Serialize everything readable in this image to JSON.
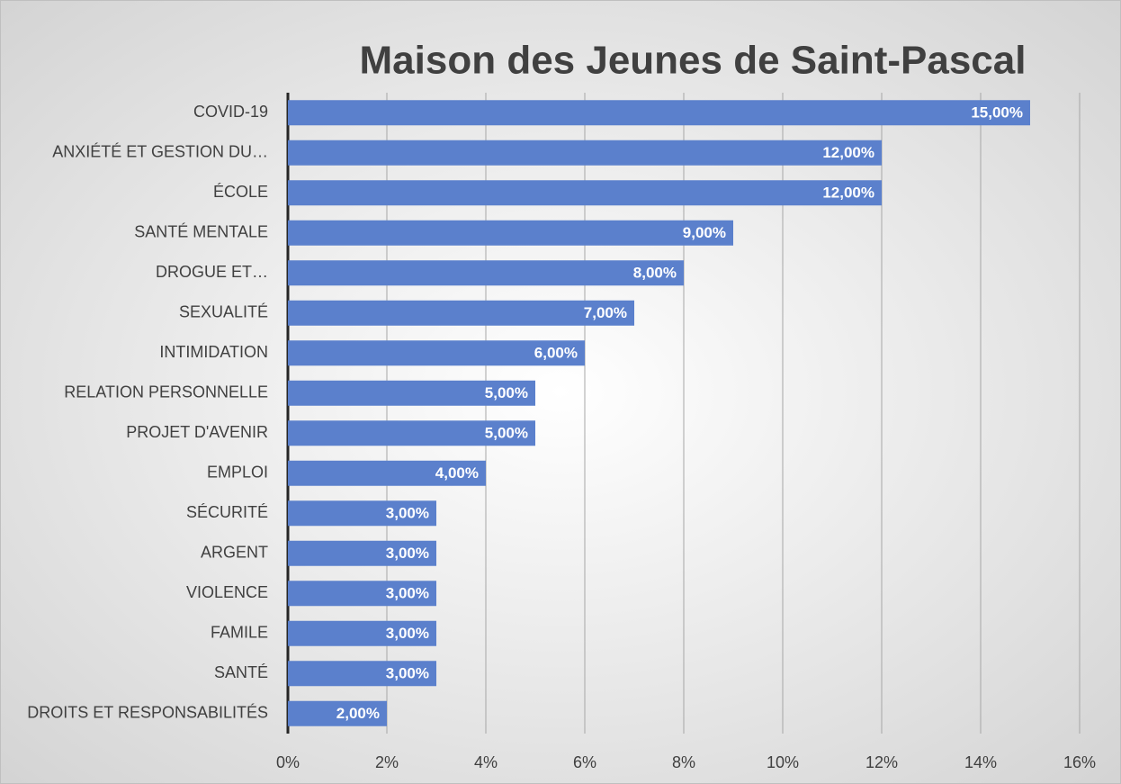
{
  "chart_data": {
    "type": "bar",
    "orientation": "horizontal",
    "title": "Maison des Jeunes de Saint-Pascal",
    "categories": [
      "COVID-19",
      "ANXIÉTÉ ET GESTION DU…",
      "ÉCOLE",
      "SANTÉ MENTALE",
      "DROGUE ET…",
      "SEXUALITÉ",
      "INTIMIDATION",
      "RELATION PERSONNELLE",
      "PROJET D'AVENIR",
      "EMPLOI",
      "SÉCURITÉ",
      "ARGENT",
      "VIOLENCE",
      "FAMILE",
      "SANTÉ",
      "DROITS ET RESPONSABILITÉS"
    ],
    "values": [
      15,
      12,
      12,
      9,
      8,
      7,
      6,
      5,
      5,
      4,
      3,
      3,
      3,
      3,
      3,
      2
    ],
    "value_labels": [
      "15,00%",
      "12,00%",
      "12,00%",
      "9,00%",
      "8,00%",
      "7,00%",
      "6,00%",
      "5,00%",
      "5,00%",
      "4,00%",
      "3,00%",
      "3,00%",
      "3,00%",
      "3,00%",
      "3,00%",
      "2,00%"
    ],
    "color": "#5b80cc",
    "xlim": [
      0,
      16
    ],
    "xticks": [
      {
        "value": 0,
        "label": "0%"
      },
      {
        "value": 2,
        "label": "2%"
      },
      {
        "value": 4,
        "label": "4%"
      },
      {
        "value": 6,
        "label": "6%"
      },
      {
        "value": 8,
        "label": "8%"
      },
      {
        "value": 10,
        "label": "10%"
      },
      {
        "value": 12,
        "label": "12%"
      },
      {
        "value": 14,
        "label": "14%"
      },
      {
        "value": 16,
        "label": "16%"
      }
    ],
    "grid": true
  }
}
